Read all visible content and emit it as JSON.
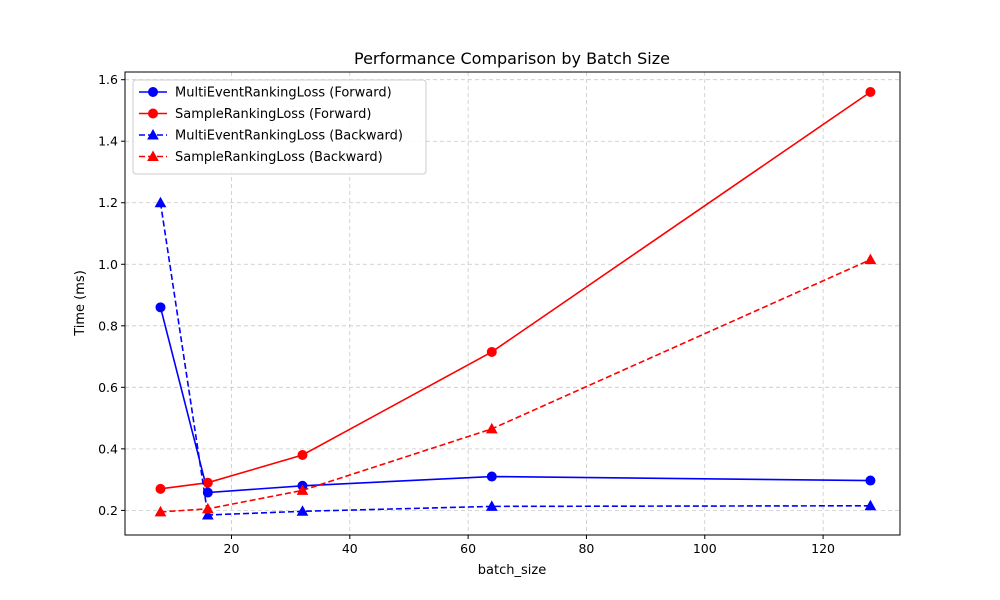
{
  "chart_data": {
    "type": "line",
    "title": "Performance Comparison by Batch Size",
    "xlabel": "batch_size",
    "ylabel": "Time (ms)",
    "xlim": [
      2,
      133
    ],
    "ylim": [
      0.12,
      1.625
    ],
    "xticks": [
      20,
      40,
      60,
      80,
      100,
      120
    ],
    "yticks": [
      0.2,
      0.4,
      0.6,
      0.8,
      1.0,
      1.2,
      1.4,
      1.6
    ],
    "grid": true,
    "legend_position": "top-left",
    "x": [
      8,
      16,
      32,
      64,
      128
    ],
    "series": [
      {
        "name": "MultiEventRankingLoss (Forward)",
        "color": "#0000ff",
        "style": "solid",
        "marker": "circle",
        "values": [
          0.86,
          0.258,
          0.28,
          0.31,
          0.297
        ]
      },
      {
        "name": "SampleRankingLoss (Forward)",
        "color": "#ff0000",
        "style": "solid",
        "marker": "circle",
        "values": [
          0.27,
          0.29,
          0.38,
          0.715,
          1.56
        ]
      },
      {
        "name": "MultiEventRankingLoss (Backward)",
        "color": "#0000ff",
        "style": "dashed",
        "marker": "triangle",
        "values": [
          1.2,
          0.185,
          0.197,
          0.213,
          0.215
        ]
      },
      {
        "name": "SampleRankingLoss (Backward)",
        "color": "#ff0000",
        "style": "dashed",
        "marker": "triangle",
        "values": [
          0.195,
          0.205,
          0.265,
          0.465,
          1.015
        ]
      }
    ]
  }
}
